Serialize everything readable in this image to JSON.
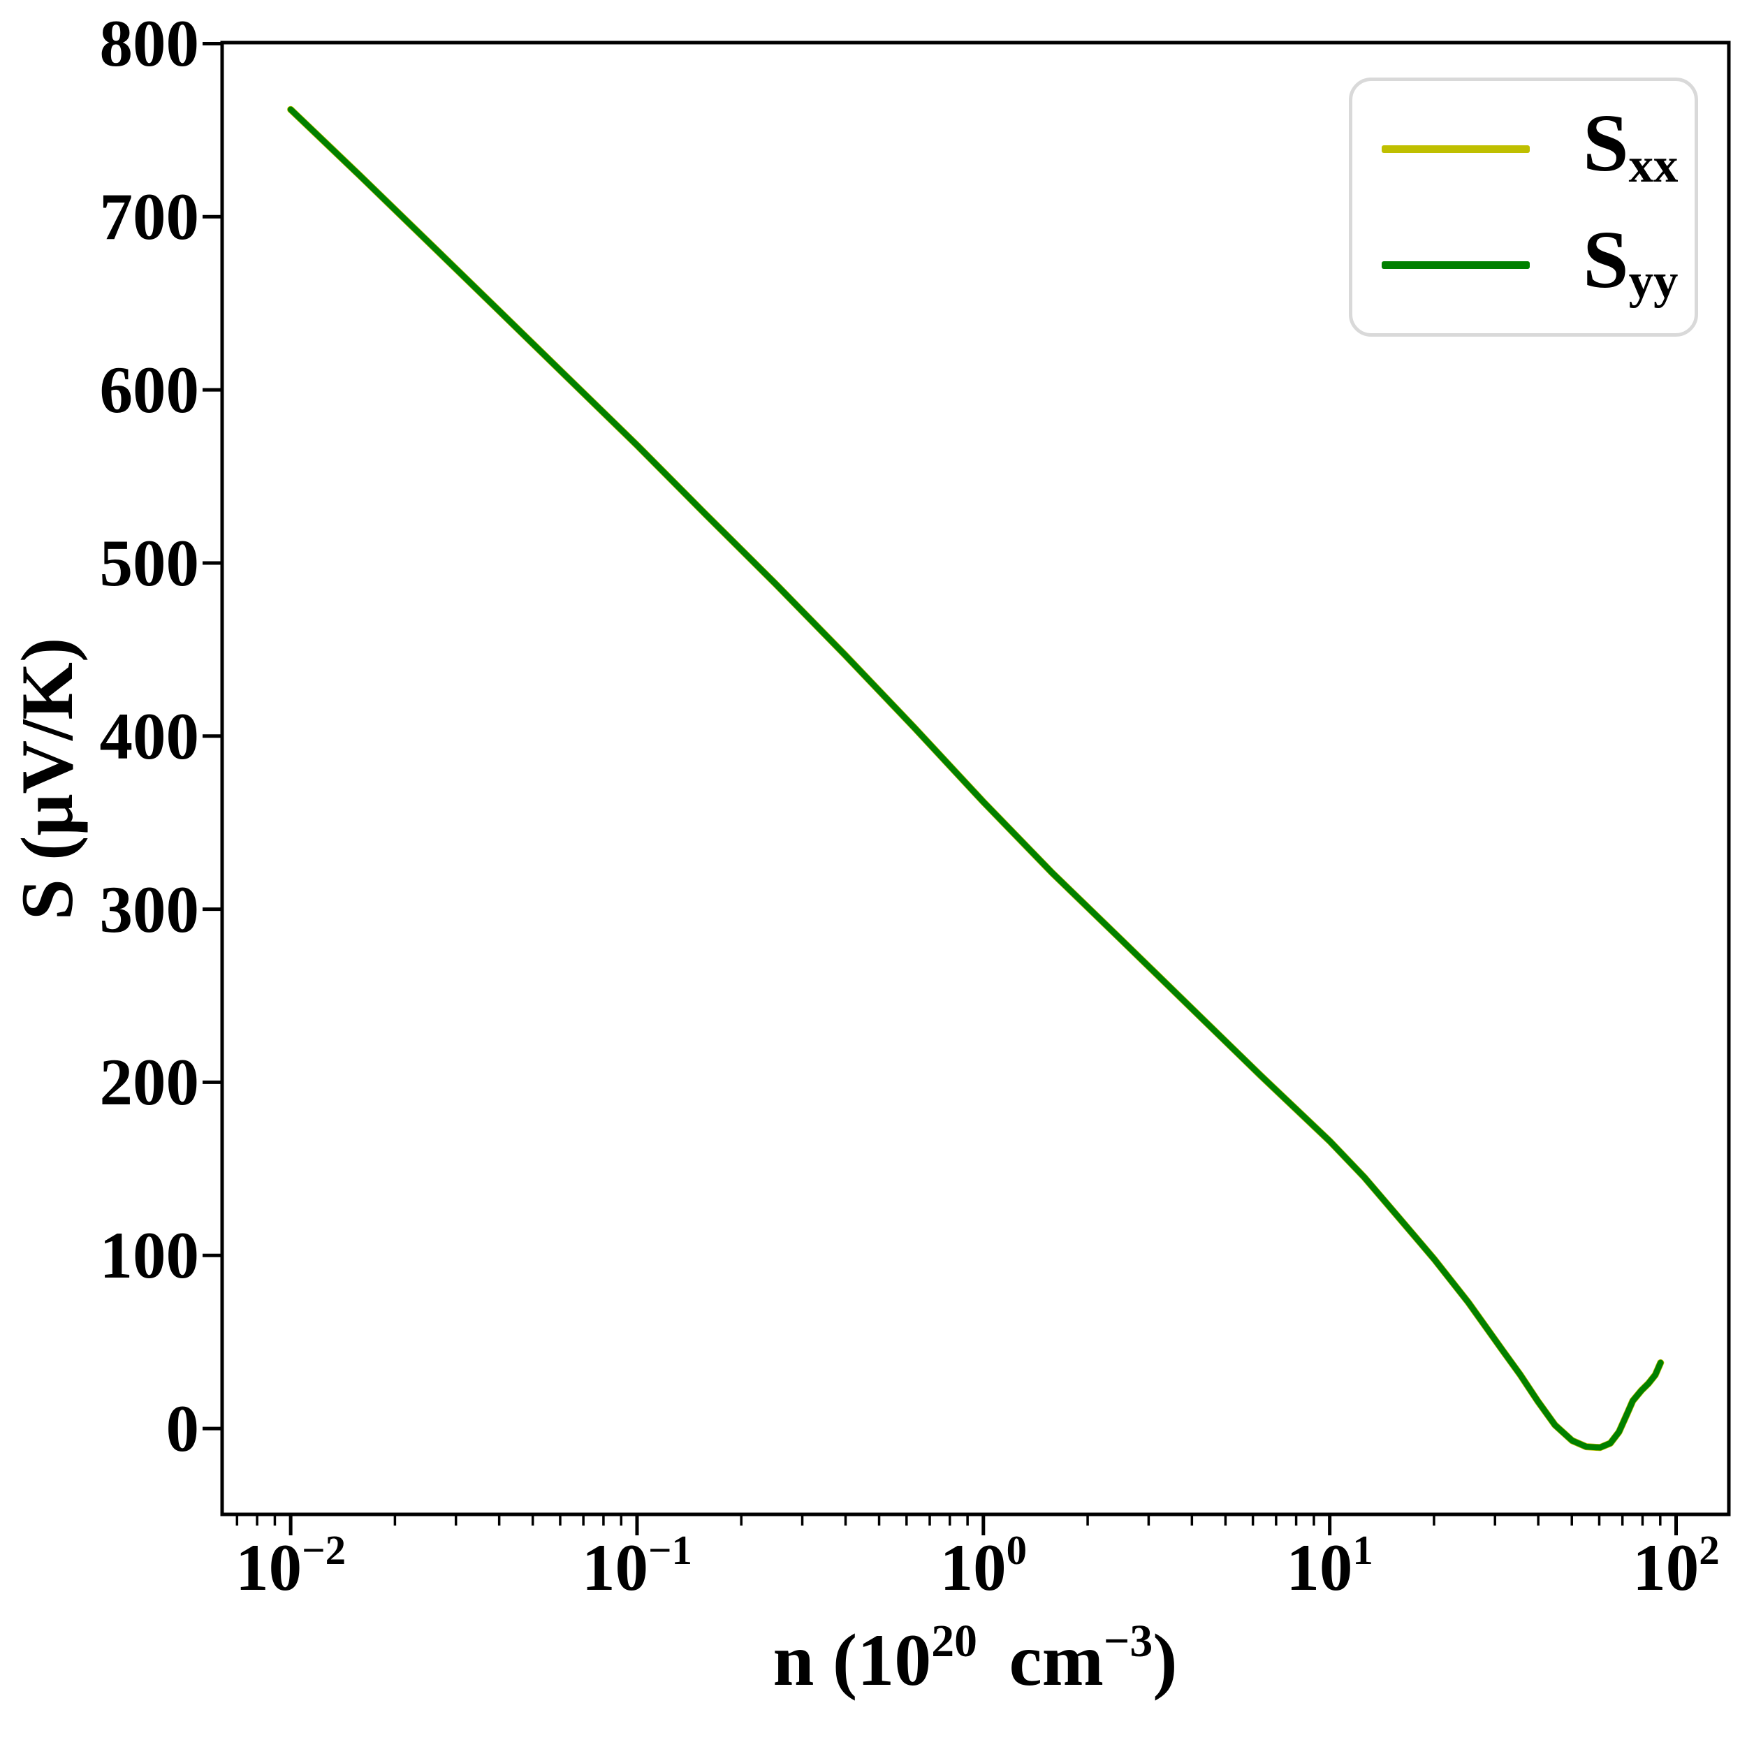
{
  "figure": {
    "background": "#ffffff",
    "spine_color": "#000000",
    "ylabel": "S (μV/K)",
    "xlabel_parts": {
      "prefix": "n (10",
      "exp1": "20",
      "mid": " cm",
      "exp2": "−3",
      "suffix": ")"
    },
    "axes": {
      "x": {
        "scale": "log",
        "ticks": [
          {
            "base": "10",
            "exp": "−2",
            "value": 0.01
          },
          {
            "base": "10",
            "exp": "−1",
            "value": 0.1
          },
          {
            "base": "10",
            "exp": "0",
            "value": 1
          },
          {
            "base": "10",
            "exp": "1",
            "value": 10
          },
          {
            "base": "10",
            "exp": "2",
            "value": 100
          }
        ]
      },
      "y": {
        "scale": "linear",
        "ticks": [
          {
            "label": "0",
            "value": 0
          },
          {
            "label": "100",
            "value": 100
          },
          {
            "label": "200",
            "value": 200
          },
          {
            "label": "300",
            "value": 300
          },
          {
            "label": "400",
            "value": 400
          },
          {
            "label": "500",
            "value": 500
          },
          {
            "label": "600",
            "value": 600
          },
          {
            "label": "700",
            "value": 700
          },
          {
            "label": "800",
            "value": 800
          }
        ]
      }
    },
    "legend": {
      "border_color": "#d9d9d9",
      "entries": [
        {
          "main": "S",
          "sub": "xx",
          "color": "#bfbf00"
        },
        {
          "main": "S",
          "sub": "yy",
          "color": "#008000"
        }
      ]
    }
  },
  "chart_data": {
    "type": "line",
    "title": "",
    "xlabel": "n (10^20 cm^-3)",
    "ylabel": "S (μV/K)",
    "x_scale": "log",
    "xlim": [
      0.00634,
      142
    ],
    "ylim": [
      -49.6,
      800.6
    ],
    "grid": false,
    "legend_position": "upper right",
    "series": [
      {
        "name": "S_xx",
        "color": "#bfbf00",
        "points": [
          [
            0.01,
            762
          ],
          [
            0.0158,
            724
          ],
          [
            0.0251,
            685
          ],
          [
            0.0398,
            646
          ],
          [
            0.0631,
            607
          ],
          [
            0.1,
            568
          ],
          [
            0.158,
            528
          ],
          [
            0.251,
            488
          ],
          [
            0.398,
            447
          ],
          [
            0.631,
            405
          ],
          [
            1.0,
            362
          ],
          [
            1.58,
            321
          ],
          [
            2.51,
            282
          ],
          [
            3.98,
            243
          ],
          [
            6.31,
            204
          ],
          [
            10,
            166
          ],
          [
            12.6,
            145
          ],
          [
            15.8,
            122
          ],
          [
            20,
            98
          ],
          [
            25.1,
            73
          ],
          [
            31.6,
            45
          ],
          [
            35.5,
            31
          ],
          [
            39.8,
            16
          ],
          [
            44.7,
            2
          ],
          [
            50.1,
            -7
          ],
          [
            55,
            -10.5
          ],
          [
            60.3,
            -11
          ],
          [
            64.6,
            -8.5
          ],
          [
            68.4,
            -2
          ],
          [
            72.4,
            9
          ],
          [
            75,
            16
          ],
          [
            79.4,
            22
          ],
          [
            83.2,
            26
          ],
          [
            87.1,
            31
          ],
          [
            90.2,
            38
          ]
        ]
      },
      {
        "name": "S_yy",
        "color": "#008000",
        "points": [
          [
            0.01,
            762
          ],
          [
            0.0158,
            724
          ],
          [
            0.0251,
            685
          ],
          [
            0.0398,
            646
          ],
          [
            0.0631,
            607
          ],
          [
            0.1,
            568
          ],
          [
            0.158,
            528
          ],
          [
            0.251,
            488
          ],
          [
            0.398,
            447
          ],
          [
            0.631,
            405
          ],
          [
            1.0,
            362
          ],
          [
            1.58,
            321
          ],
          [
            2.51,
            282
          ],
          [
            3.98,
            243
          ],
          [
            6.31,
            204
          ],
          [
            10,
            166
          ],
          [
            12.6,
            145
          ],
          [
            15.8,
            122
          ],
          [
            20,
            98
          ],
          [
            25.1,
            73
          ],
          [
            31.6,
            45
          ],
          [
            35.5,
            31
          ],
          [
            39.8,
            16
          ],
          [
            44.7,
            2
          ],
          [
            50.1,
            -7
          ],
          [
            55,
            -10.5
          ],
          [
            60.3,
            -11
          ],
          [
            64.6,
            -8.5
          ],
          [
            68.4,
            -2
          ],
          [
            72.4,
            9
          ],
          [
            75,
            16
          ],
          [
            79.4,
            22
          ],
          [
            83.2,
            26
          ],
          [
            87.1,
            31
          ],
          [
            90.2,
            38
          ]
        ]
      }
    ]
  }
}
